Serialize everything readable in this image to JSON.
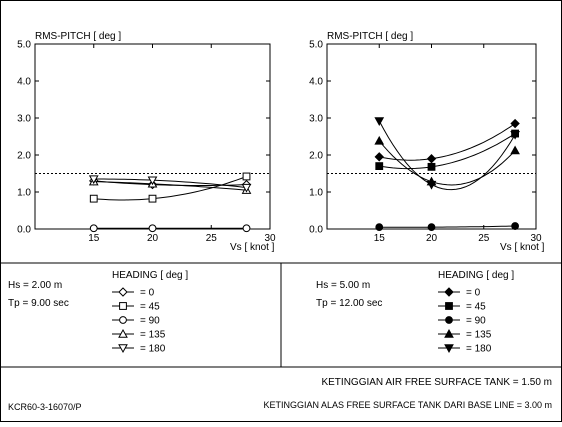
{
  "charts": [
    {
      "panel": "left",
      "type": "line",
      "ylabel": "RMS-PITCH [ deg ]",
      "xlabel": "Vs [ knot ]",
      "xlim": [
        10,
        30
      ],
      "ylim": [
        0,
        5
      ],
      "xticks": [
        "15",
        "20",
        "25",
        "30"
      ],
      "yticks": [
        "0.0",
        "1.0",
        "2.0",
        "3.0",
        "4.0",
        "5.0"
      ],
      "reference_line_y": 1.5,
      "marker_style": "open",
      "series": [
        {
          "name": "0",
          "marker": "diamond",
          "x": [
            15,
            20,
            28
          ],
          "y": [
            1.3,
            1.2,
            1.2
          ]
        },
        {
          "name": "45",
          "marker": "square",
          "x": [
            15,
            20,
            28
          ],
          "y": [
            0.82,
            0.82,
            1.42
          ]
        },
        {
          "name": "90",
          "marker": "circle",
          "x": [
            15,
            20,
            28
          ],
          "y": [
            0.02,
            0.02,
            0.02
          ]
        },
        {
          "name": "135",
          "marker": "triangle-up",
          "x": [
            15,
            20,
            28
          ],
          "y": [
            1.28,
            1.22,
            1.05
          ]
        },
        {
          "name": "180",
          "marker": "triangle-down",
          "x": [
            15,
            20,
            28
          ],
          "y": [
            1.35,
            1.32,
            1.12
          ]
        }
      ]
    },
    {
      "panel": "right",
      "type": "line",
      "ylabel": "RMS-PITCH [ deg ]",
      "xlabel": "Vs [ knot ]",
      "xlim": [
        10,
        30
      ],
      "ylim": [
        0,
        5
      ],
      "xticks": [
        "15",
        "20",
        "25",
        "30"
      ],
      "yticks": [
        "0.0",
        "1.0",
        "2.0",
        "3.0",
        "4.0",
        "5.0"
      ],
      "reference_line_y": 1.5,
      "marker_style": "filled",
      "series": [
        {
          "name": "0",
          "marker": "diamond",
          "x": [
            15,
            20,
            28
          ],
          "y": [
            1.95,
            1.9,
            2.85
          ]
        },
        {
          "name": "45",
          "marker": "square",
          "x": [
            15,
            20,
            28
          ],
          "y": [
            1.7,
            1.68,
            2.58
          ]
        },
        {
          "name": "90",
          "marker": "circle",
          "x": [
            15,
            20,
            28
          ],
          "y": [
            0.05,
            0.05,
            0.08
          ]
        },
        {
          "name": "135",
          "marker": "triangle-up",
          "x": [
            15,
            20,
            28
          ],
          "y": [
            2.38,
            1.28,
            2.12
          ]
        },
        {
          "name": "180",
          "marker": "triangle-down",
          "x": [
            15,
            20,
            28
          ],
          "y": [
            2.92,
            1.2,
            2.55
          ]
        }
      ]
    }
  ],
  "conditions": [
    {
      "hs": "Hs = 2.00 m",
      "tp": "Tp = 9.00 sec",
      "heading_title": "HEADING [ deg ]",
      "entries": [
        {
          "value": "=    0"
        },
        {
          "value": "=   45"
        },
        {
          "value": "=   90"
        },
        {
          "value": "= 135"
        },
        {
          "value": "= 180"
        }
      ]
    },
    {
      "hs": "Hs = 5.00 m",
      "tp": "Tp = 12.00 sec",
      "heading_title": "HEADING [ deg ]",
      "entries": [
        {
          "value": "=    0"
        },
        {
          "value": "=   45"
        },
        {
          "value": "=   90"
        },
        {
          "value": "= 135"
        },
        {
          "value": "= 180"
        }
      ]
    }
  ],
  "footer": {
    "code": "KCR60-3-16070/P",
    "line1": "KETINGGIAN AIR FREE SURFACE TANK = 1.50 m",
    "line2": "KETINGGIAN ALAS FREE SURFACE TANK DARI BASE LINE = 3.00 m"
  }
}
